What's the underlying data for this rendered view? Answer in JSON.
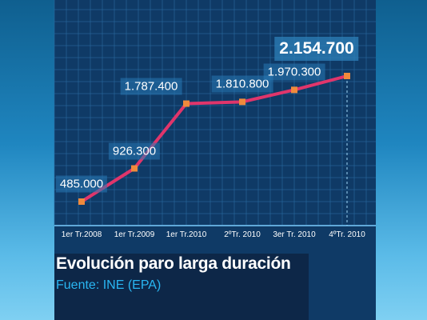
{
  "chart_data": {
    "type": "line",
    "title": "Evolución paro larga duración",
    "source": "Fuente:  INE (EPA)",
    "categories": [
      "1er Tr.2008",
      "1er Tr.2009",
      "1er Tr.2010",
      "2ºTr. 2010",
      "3er Tr. 2010",
      "4ºTr. 2010"
    ],
    "values": [
      485000,
      926300,
      1787400,
      1810800,
      1970300,
      2154700
    ],
    "value_labels": [
      "485.000",
      "926.300",
      "1.787.400",
      "1.810.800",
      "1.970.300",
      "2.154.700"
    ],
    "ylim": [
      350000,
      2400000
    ],
    "grid": true,
    "colors": {
      "line": "#e0356b",
      "marker": "#f08a3c",
      "grid": "#2a6aa0"
    }
  }
}
